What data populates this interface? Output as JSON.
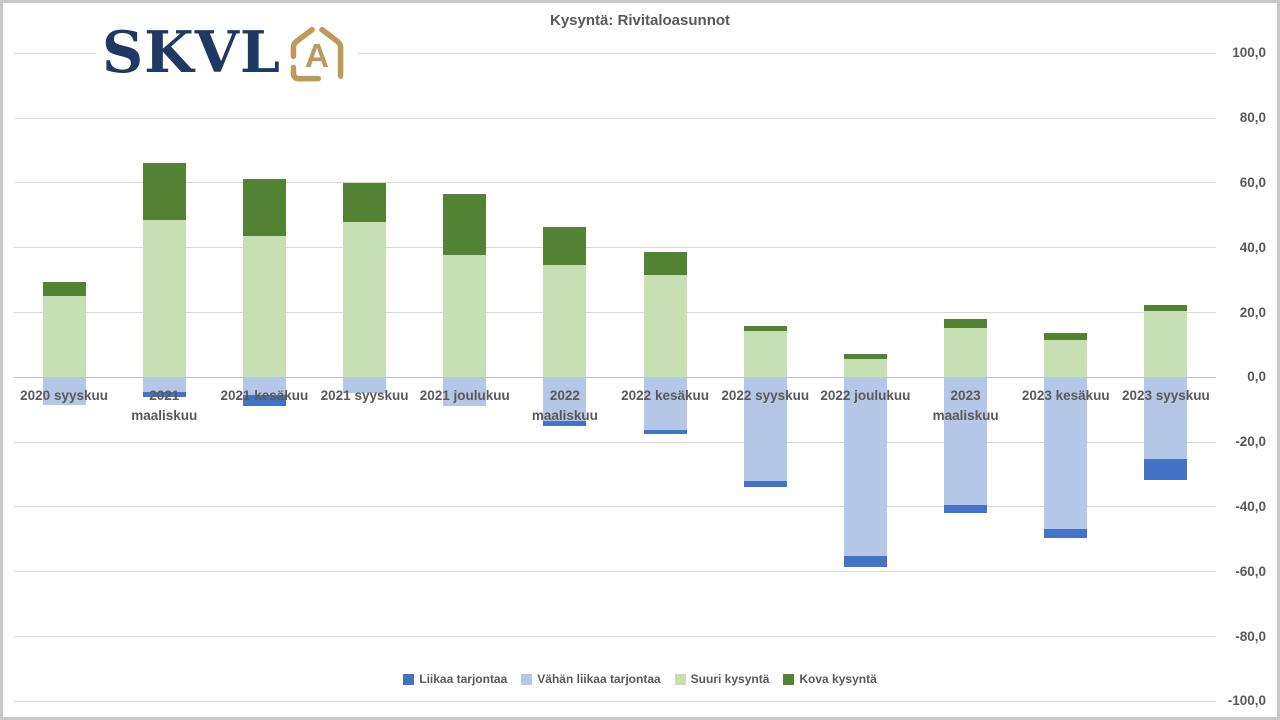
{
  "page": {
    "title": "Kysyntä: Rivitaloasunnot"
  },
  "logo": {
    "text": "SKVL",
    "icon_letter": "A",
    "navy": "#1f3864",
    "gold": "#bd9a5c"
  },
  "colors": {
    "text": "#595959",
    "gridline": "#d9d9d9",
    "axis_line": "#bfbfbf",
    "liikaa_tarjontaa": "#4472c4",
    "vahan_liikaa_tarjontaa": "#b4c7e7",
    "suuri_kysynta": "#c6e0b4",
    "kova_kysynta": "#548235"
  },
  "y_axis": {
    "tick_values": [
      100,
      80,
      60,
      40,
      20,
      0,
      -20,
      -40,
      -60,
      -80,
      -100
    ],
    "tick_labels": [
      "100,0",
      "80,0",
      "60,0",
      "40,0",
      "20,0",
      "0,0",
      "-20,0",
      "-40,0",
      "-60,0",
      "-80,0",
      "-100,0"
    ]
  },
  "chart_data": {
    "type": "bar",
    "stacked": true,
    "title": "Kysyntä: Rivitaloasunnot",
    "categories": [
      "2020 syyskuu",
      "2021 maaliskuu",
      "2021 kesäkuu",
      "2021 syyskuu",
      "2021 joulukuu",
      "2022 maaliskuu",
      "2022 kesäkuu",
      "2022 syyskuu",
      "2022 joulukuu",
      "2023 maaliskuu",
      "2023 kesäkuu",
      "2023 syyskuu"
    ],
    "category_label_lines": [
      [
        "2020 syyskuu"
      ],
      [
        "2021",
        "maaliskuu"
      ],
      [
        "2021 kesäkuu"
      ],
      [
        "2021 syyskuu"
      ],
      [
        "2021 joulukuu"
      ],
      [
        "2022",
        "maaliskuu"
      ],
      [
        "2022 kesäkuu"
      ],
      [
        "2022 syyskuu"
      ],
      [
        "2022 joulukuu"
      ],
      [
        "2023",
        "maaliskuu"
      ],
      [
        "2023 kesäkuu"
      ],
      [
        "2023 syyskuu"
      ]
    ],
    "series": [
      {
        "name": "Liikaa tarjontaa",
        "color": "#4472c4",
        "values": [
          0,
          -1.4,
          -3.4,
          0,
          0,
          -1.6,
          -1.2,
          -2.1,
          -3.4,
          -2.6,
          -2.8,
          -6.4
        ]
      },
      {
        "name": "Vähän liikaa tarjontaa",
        "color": "#b4c7e7",
        "values": [
          -8.5,
          -4.6,
          -5.5,
          -4.8,
          -8.9,
          -13.4,
          -16.3,
          -31.9,
          -55.2,
          -39.4,
          -46.9,
          -25.3
        ]
      },
      {
        "name": "Suuri kysyntä",
        "color": "#c6e0b4",
        "values": [
          25.2,
          48.5,
          43.6,
          48.0,
          37.7,
          34.7,
          31.6,
          14.4,
          5.6,
          15.1,
          11.5,
          20.5
        ]
      },
      {
        "name": "Kova kysyntä",
        "color": "#548235",
        "values": [
          4.1,
          17.7,
          17.5,
          12.1,
          18.8,
          11.6,
          7.2,
          1.5,
          1.6,
          2.8,
          2.3,
          1.8
        ]
      }
    ],
    "stack_order": {
      "positive": [
        "Suuri kysyntä",
        "Kova kysyntä"
      ],
      "negative": [
        "Vähän liikaa tarjontaa",
        "Liikaa tarjontaa"
      ]
    },
    "ylim": [
      -100,
      100
    ],
    "grid": true,
    "legend_position": "bottom"
  }
}
